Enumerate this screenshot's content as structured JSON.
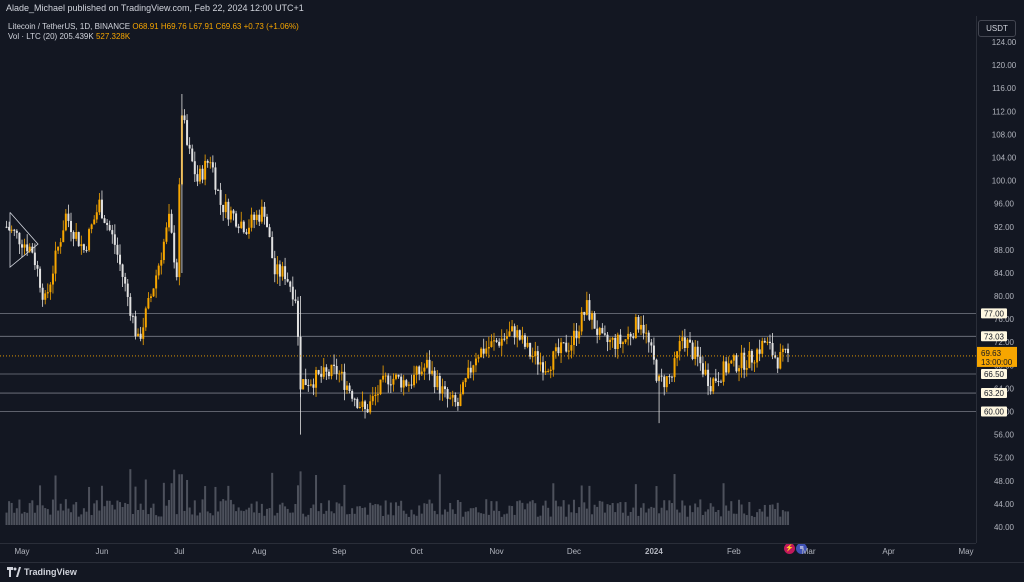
{
  "header": {
    "publisher": "Alade_Michael published on TradingView.com, Feb 22, 2024 12:00 UTC+1"
  },
  "legend": {
    "symbol": "Litecoin / TetherUS, 1D, BINANCE",
    "o": "O68.91",
    "h": "H69.76",
    "l": "L67.91",
    "c": "C69.63",
    "change": "+0.73 (+1.06%)",
    "vol_label": "Vol · LTC (20)",
    "vol_value": "205.439K",
    "vol_ma": "527.328K"
  },
  "price_axis": {
    "currency": "USDT",
    "ticks": [
      "124.00",
      "120.00",
      "116.00",
      "112.00",
      "108.00",
      "104.00",
      "100.00",
      "96.00",
      "92.00",
      "88.00",
      "84.00",
      "80.00",
      "76.00",
      "72.00",
      "68.00",
      "64.00",
      "60.00",
      "56.00",
      "52.00",
      "48.00",
      "44.00",
      "40.00"
    ],
    "last_price": "69.63",
    "countdown": "13:00:00",
    "level_labels": [
      "77.00",
      "73.03",
      "66.50",
      "63.20",
      "60.00"
    ]
  },
  "time_axis": {
    "labels": [
      "May",
      "Jun",
      "Jul",
      "Aug",
      "Sep",
      "Oct",
      "Nov",
      "Dec",
      "2024",
      "Feb",
      "Mar",
      "Apr",
      "May"
    ]
  },
  "footer": {
    "brand": "TradingView"
  },
  "colors": {
    "background": "#131722",
    "bull": "#f7a600",
    "bear": "#e1e1e1",
    "level_line": "#787b86",
    "last_price": "#f7a600",
    "volume": "#5d606b"
  },
  "chart_data": {
    "type": "candlestick",
    "title": "Litecoin / TetherUS, 1D, BINANCE",
    "ylim": [
      38,
      126
    ],
    "y_ticks": [
      124,
      120,
      116,
      112,
      108,
      104,
      100,
      96,
      92,
      88,
      84,
      80,
      76,
      72,
      68,
      64,
      60,
      56,
      52,
      48,
      44,
      40
    ],
    "x_range": [
      "2023-04-25",
      "2024-05-20"
    ],
    "x_ticks": [
      {
        "label": "May",
        "date": "2023-05-01"
      },
      {
        "label": "Jun",
        "date": "2023-06-01"
      },
      {
        "label": "Jul",
        "date": "2023-07-01"
      },
      {
        "label": "Aug",
        "date": "2023-08-01"
      },
      {
        "label": "Sep",
        "date": "2023-09-01"
      },
      {
        "label": "Oct",
        "date": "2023-10-01"
      },
      {
        "label": "Nov",
        "date": "2023-11-01"
      },
      {
        "label": "Dec",
        "date": "2023-12-01"
      },
      {
        "label": "2024",
        "date": "2024-01-01"
      },
      {
        "label": "Feb",
        "date": "2024-02-01"
      },
      {
        "label": "Mar",
        "date": "2024-03-01"
      },
      {
        "label": "Apr",
        "date": "2024-04-01"
      },
      {
        "label": "May",
        "date": "2024-05-01"
      }
    ],
    "horizontal_levels": [
      77.0,
      73.03,
      66.5,
      63.2,
      60.0
    ],
    "last_price": 69.63,
    "key_points": [
      {
        "date": "2023-04-25",
        "close": 92
      },
      {
        "date": "2023-05-05",
        "close": 88
      },
      {
        "date": "2023-05-10",
        "close": 79
      },
      {
        "date": "2023-05-18",
        "close": 94
      },
      {
        "date": "2023-05-25",
        "close": 88
      },
      {
        "date": "2023-05-31",
        "close": 96
      },
      {
        "date": "2023-06-06",
        "close": 89
      },
      {
        "date": "2023-06-12",
        "close": 78
      },
      {
        "date": "2023-06-15",
        "close": 72
      },
      {
        "date": "2023-06-20",
        "close": 80
      },
      {
        "date": "2023-06-27",
        "close": 93
      },
      {
        "date": "2023-06-30",
        "close": 84
      },
      {
        "date": "2023-07-02",
        "close": 112
      },
      {
        "date": "2023-07-04",
        "close": 106
      },
      {
        "date": "2023-07-08",
        "close": 100
      },
      {
        "date": "2023-07-13",
        "close": 104
      },
      {
        "date": "2023-07-17",
        "close": 96
      },
      {
        "date": "2023-07-27",
        "close": 92
      },
      {
        "date": "2023-08-03",
        "close": 95
      },
      {
        "date": "2023-08-07",
        "close": 84
      },
      {
        "date": "2023-08-11",
        "close": 84
      },
      {
        "date": "2023-08-15",
        "close": 80
      },
      {
        "date": "2023-08-17",
        "close": 65
      },
      {
        "date": "2023-08-25",
        "close": 66
      },
      {
        "date": "2023-08-31",
        "close": 67
      },
      {
        "date": "2023-09-05",
        "close": 64
      },
      {
        "date": "2023-09-11",
        "close": 60
      },
      {
        "date": "2023-09-20",
        "close": 66
      },
      {
        "date": "2023-09-28",
        "close": 65
      },
      {
        "date": "2023-10-05",
        "close": 68
      },
      {
        "date": "2023-10-13",
        "close": 62
      },
      {
        "date": "2023-10-17",
        "close": 61
      },
      {
        "date": "2023-10-24",
        "close": 70
      },
      {
        "date": "2023-11-01",
        "close": 72
      },
      {
        "date": "2023-11-08",
        "close": 74
      },
      {
        "date": "2023-11-14",
        "close": 70
      },
      {
        "date": "2023-11-20",
        "close": 68
      },
      {
        "date": "2023-11-30",
        "close": 72
      },
      {
        "date": "2023-12-06",
        "close": 78
      },
      {
        "date": "2023-12-12",
        "close": 72
      },
      {
        "date": "2023-12-20",
        "close": 72
      },
      {
        "date": "2023-12-27",
        "close": 76
      },
      {
        "date": "2023-12-31",
        "close": 70
      },
      {
        "date": "2024-01-03",
        "close": 65
      },
      {
        "date": "2024-01-08",
        "close": 66
      },
      {
        "date": "2024-01-12",
        "close": 73
      },
      {
        "date": "2024-01-18",
        "close": 69
      },
      {
        "date": "2024-01-23",
        "close": 65
      },
      {
        "date": "2024-01-30",
        "close": 68
      },
      {
        "date": "2024-02-07",
        "close": 69
      },
      {
        "date": "2024-02-13",
        "close": 72
      },
      {
        "date": "2024-02-18",
        "close": 69
      },
      {
        "date": "2024-02-22",
        "close": 69.63
      }
    ]
  }
}
